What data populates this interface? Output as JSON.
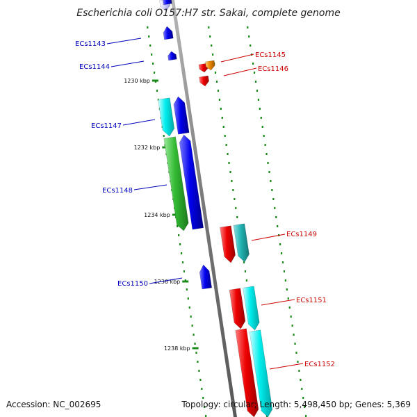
{
  "title": "Escherichia coli O157:H7 str. Sakai, complete genome",
  "footer": {
    "accession": "Accession: NC_002695",
    "topology": "Topology: circular; Length: 5,498,450 bp; Genes: 5,369"
  },
  "ticks": [
    "1230 kbp",
    "1232 kbp",
    "1234 kbp",
    "1236 kbp",
    "1238 kbp"
  ],
  "genes": [
    {
      "id": "ECs1143",
      "strand": "left"
    },
    {
      "id": "ECs1144",
      "strand": "left"
    },
    {
      "id": "ECs1145",
      "strand": "right"
    },
    {
      "id": "ECs1146",
      "strand": "right"
    },
    {
      "id": "ECs1147",
      "strand": "left"
    },
    {
      "id": "ECs1148",
      "strand": "left"
    },
    {
      "id": "ECs1149",
      "strand": "right"
    },
    {
      "id": "ECs1150",
      "strand": "left"
    },
    {
      "id": "ECs1151",
      "strand": "right"
    },
    {
      "id": "ECs1152",
      "strand": "right"
    }
  ],
  "colors": {
    "backbone": "#888888",
    "left_label": "#0000bb",
    "right_label": "#cc0000",
    "tick": "#1a8a1a",
    "blue": "#0000ee",
    "cyan": "#00e5ee",
    "teal": "#22b5b5",
    "green": "#33bb33",
    "red": "#ee0000",
    "orange": "#ee8800",
    "lavender": "#ccccff"
  }
}
